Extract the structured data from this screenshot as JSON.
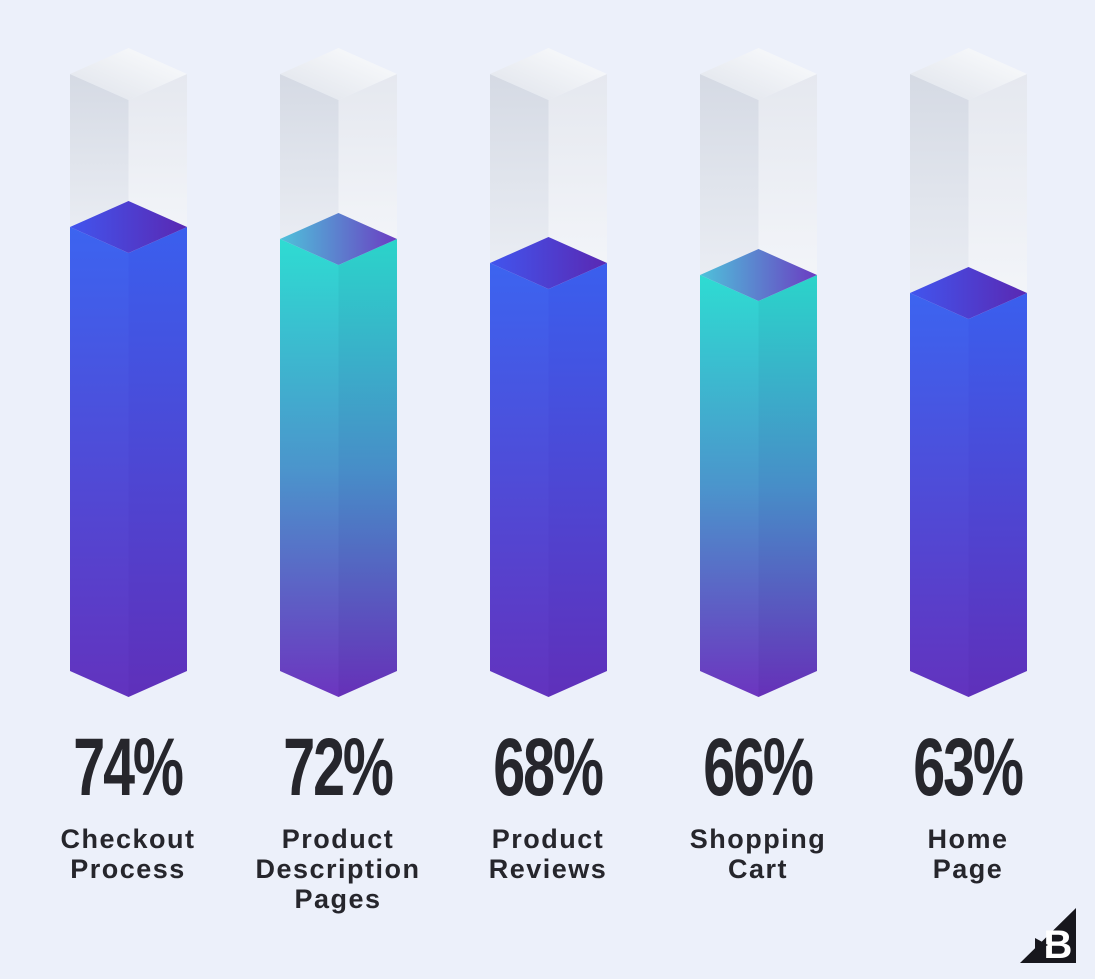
{
  "chart_data": {
    "type": "bar",
    "title": "",
    "categories": [
      "Checkout Process",
      "Product Description Pages",
      "Product Reviews",
      "Shopping Cart",
      "Home Page"
    ],
    "category_lines": [
      [
        "Checkout",
        "Process"
      ],
      [
        "Product",
        "Description",
        "Pages"
      ],
      [
        "Product",
        "Reviews"
      ],
      [
        "Shopping",
        "Cart"
      ],
      [
        "Home",
        "Page"
      ]
    ],
    "values": [
      74,
      72,
      68,
      66,
      63
    ],
    "value_labels": [
      "74%",
      "72%",
      "68%",
      "66%",
      "63%"
    ],
    "unit": "%",
    "ylim": [
      0,
      100
    ],
    "bar_styles": [
      "blue",
      "teal",
      "blue",
      "teal",
      "blue"
    ],
    "grid": false,
    "legend": false,
    "style_note": "isometric 3D columns, unfilled remainder shown as white box above fill"
  },
  "palette": {
    "background": "#ECF0FA",
    "text": "#26262C",
    "bar_blue": {
      "top": [
        "#4155EE",
        "#5A28B2"
      ],
      "left": [
        "#3C64F0",
        "#6233BE"
      ],
      "right": [
        "#3A5FEE",
        "#5F30BA"
      ]
    },
    "bar_teal": {
      "top": [
        "#4EC2DA",
        "#6B3CC2"
      ],
      "left": [
        "#2EDCD2",
        "#4B95CC",
        "#6C35BF"
      ],
      "right": [
        "#2BD4CA",
        "#478EC8",
        "#6630B8"
      ]
    },
    "bar_empty": {
      "top": [
        "#DFE3EB",
        "#FCFDFE"
      ],
      "left": [
        "#D5DAE4",
        "#ECEFF5"
      ],
      "right": [
        "#E5E8EF",
        "#F4F6FA"
      ]
    }
  },
  "logo": {
    "letter": "B",
    "color": "#17171D"
  }
}
